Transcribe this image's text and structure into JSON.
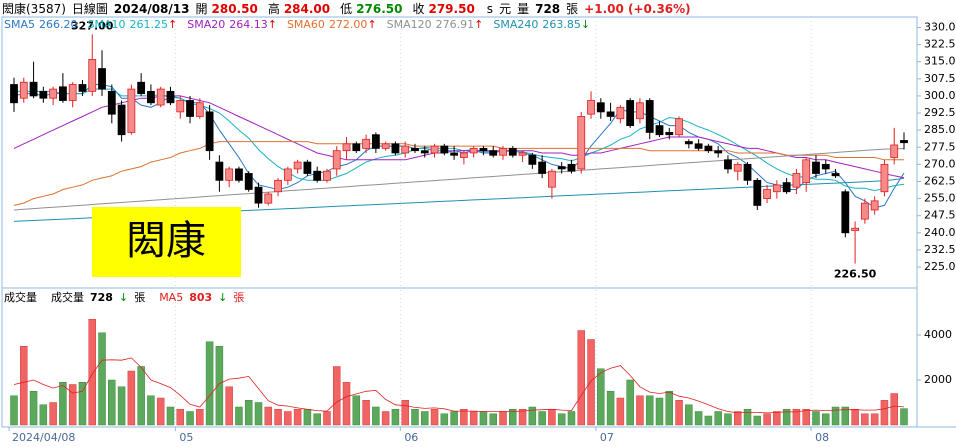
{
  "chart_data": {
    "type": "candlestick",
    "title": "閎康(3587)",
    "subtitle": "日線圖",
    "date": "2024/08/13",
    "quote": [
      {
        "name": "開",
        "value": 280.5,
        "label": "280.50",
        "color": "#e00000"
      },
      {
        "name": "高",
        "value": 284,
        "label": "284.00",
        "color": "#e00000"
      },
      {
        "name": "低",
        "value": 276.5,
        "label": "276.50",
        "color": "#008a00"
      },
      {
        "name": "收",
        "value": 279.5,
        "label": "279.50",
        "color": "#e00000"
      }
    ],
    "currency_s": "s",
    "currency": "元",
    "volume_name": "量",
    "unit": "張",
    "change": "+1.00 (+0.36%)",
    "watermark": "閎康",
    "max_label": "327.00",
    "min_label": "226.50",
    "up_color": "#e02020",
    "up_fill": "#f58a8a",
    "down_color": "#000000",
    "categories": [
      "2024/04/08",
      null,
      null,
      null,
      null,
      null,
      null,
      null,
      null,
      null,
      null,
      null,
      null,
      null,
      null,
      null,
      null,
      "05",
      null,
      null,
      null,
      null,
      null,
      null,
      null,
      null,
      null,
      null,
      null,
      null,
      null,
      null,
      null,
      null,
      null,
      null,
      null,
      null,
      null,
      null,
      "06",
      null,
      null,
      null,
      null,
      null,
      null,
      null,
      null,
      null,
      null,
      null,
      null,
      null,
      null,
      null,
      null,
      null,
      null,
      null,
      "07",
      null,
      null,
      null,
      null,
      null,
      null,
      null,
      null,
      null,
      null,
      null,
      null,
      null,
      null,
      null,
      null,
      null,
      null,
      null,
      null,
      null,
      "08",
      null,
      null,
      null,
      null,
      null,
      null,
      null,
      null,
      null
    ],
    "open": [
      305,
      299,
      306,
      302,
      299,
      304,
      298,
      305,
      302,
      312,
      302,
      296,
      284,
      306,
      302,
      296,
      302,
      293,
      298,
      291,
      293,
      271,
      263,
      268,
      266,
      260,
      253,
      258,
      263,
      268,
      271,
      267,
      263,
      268,
      276,
      279,
      277,
      283,
      277,
      279,
      275,
      277,
      276,
      275,
      278,
      275,
      273,
      275,
      277,
      276,
      274,
      277,
      274,
      274,
      271,
      260,
      269,
      270,
      268,
      292,
      297,
      293,
      290,
      298,
      290,
      298,
      287,
      284,
      283,
      280,
      279,
      278,
      276,
      272,
      267,
      270,
      263,
      255,
      258,
      262,
      260,
      262,
      271,
      270,
      266,
      258,
      241,
      246,
      250,
      258,
      273,
      280.5
    ],
    "high": [
      308,
      308,
      315,
      304,
      304,
      310,
      306,
      307,
      327,
      320,
      305,
      298,
      305,
      310,
      305,
      304,
      304,
      300,
      300,
      299,
      296,
      274,
      269,
      269,
      267,
      262,
      258,
      264,
      269,
      272,
      272,
      269,
      268,
      278,
      282,
      280,
      283,
      284,
      280,
      280,
      280,
      279,
      278,
      279,
      279,
      278,
      276,
      278,
      278,
      278,
      278,
      278,
      276,
      275,
      274,
      268,
      271,
      272,
      293,
      302,
      299,
      297,
      296,
      299,
      299,
      299,
      289,
      286,
      291,
      281,
      281,
      279,
      278,
      274,
      271,
      271,
      264,
      261,
      263,
      264,
      268,
      273,
      274,
      272,
      268,
      259,
      245,
      255,
      256,
      272,
      286,
      284
    ],
    "low": [
      293,
      297,
      299,
      297,
      296,
      297,
      295,
      300,
      300,
      300,
      288,
      280,
      283,
      300,
      296,
      295,
      296,
      290,
      288,
      290,
      272,
      258,
      260,
      262,
      258,
      251,
      252,
      256,
      261,
      266,
      265,
      262,
      262,
      265,
      272,
      275,
      275,
      275,
      276,
      274,
      273,
      275,
      273,
      273,
      274,
      272,
      270,
      273,
      274,
      273,
      272,
      273,
      271,
      268,
      264,
      255,
      266,
      266,
      266,
      290,
      290,
      289,
      288,
      286,
      288,
      281,
      282,
      281,
      282,
      277,
      276,
      275,
      273,
      266,
      263,
      261,
      250,
      253,
      255,
      257,
      257,
      258,
      264,
      266,
      264,
      238,
      226.5,
      244,
      248,
      256,
      270,
      276.5
    ],
    "close": [
      297,
      306,
      300,
      299,
      303,
      298,
      305,
      302,
      316,
      303,
      292,
      283,
      303,
      301,
      297,
      303,
      297,
      298,
      291,
      297,
      276,
      263,
      268,
      263,
      259,
      253,
      257,
      263,
      268,
      271,
      266,
      263,
      267,
      276,
      279,
      276,
      281,
      277,
      279,
      275,
      278,
      276,
      275,
      278,
      275,
      274,
      275,
      277,
      276,
      274,
      277,
      274,
      275,
      270,
      266,
      267,
      268,
      267,
      291,
      298,
      293,
      291,
      295,
      287,
      297,
      284,
      283,
      283,
      290,
      279,
      277,
      276,
      275,
      268,
      270,
      263,
      252,
      259,
      261,
      258,
      266,
      272,
      266,
      268,
      265,
      240,
      242,
      253,
      254,
      270,
      278.5,
      279.5
    ],
    "ylim": [
      215.8,
      334.6
    ],
    "yticks": [
      {
        "value": 330,
        "label": "330.0"
      },
      322.5,
      {
        "value": 315,
        "label": "315.0"
      },
      307.5,
      {
        "value": 300,
        "label": "300.0"
      },
      292.5,
      {
        "value": 285,
        "label": "285.0"
      },
      277.5,
      {
        "value": 270,
        "label": "270.0"
      },
      262.5,
      {
        "value": 255,
        "label": "255.0"
      },
      247.5,
      {
        "value": 240,
        "label": "240.0"
      },
      232.5,
      {
        "value": 225,
        "label": "225.0"
      }
    ],
    "series": [
      {
        "name": "SMA5",
        "color": "#2a78c8",
        "value_label": "266.20",
        "values": [
          300,
          301,
          301,
          300,
          301,
          301,
          301,
          301,
          305,
          305,
          304,
          299,
          299,
          296,
          295,
          297,
          300,
          299,
          297,
          297,
          292,
          285,
          279,
          273,
          266,
          261,
          260,
          259,
          260,
          262,
          265,
          266,
          267,
          269,
          270,
          272,
          276,
          278,
          278,
          278,
          278,
          277,
          277,
          276,
          276,
          276,
          275,
          276,
          275,
          275,
          276,
          276,
          275,
          274,
          272,
          270,
          269,
          268,
          272,
          278,
          283,
          288,
          294,
          293,
          293,
          291,
          289,
          287,
          287,
          284,
          282,
          281,
          279,
          275,
          273,
          270,
          266,
          262,
          261,
          259,
          259,
          263,
          265,
          266,
          267,
          262,
          256,
          254,
          251,
          252,
          259.5,
          266.2
        ]
      },
      {
        "name": "SMA10",
        "color": "#17b3c4",
        "value_label": "261.25",
        "arrow": "↑",
        "arrow_color": "#e00000",
        "values": [
          302,
          302,
          302,
          302,
          302,
          301,
          301,
          301,
          303,
          303,
          303,
          300,
          300,
          300,
          300,
          300.5,
          299.5,
          299,
          296.5,
          296,
          294.5,
          292.5,
          289,
          285,
          281.5,
          276.5,
          272.5,
          269,
          266.5,
          264,
          263,
          263,
          263,
          264.5,
          266,
          268.5,
          271,
          272.5,
          273.5,
          274,
          275,
          276.5,
          277.5,
          277,
          277,
          277,
          276,
          276.5,
          275.5,
          275.5,
          276,
          275.5,
          275.5,
          274.5,
          273.5,
          273,
          272.5,
          271.5,
          273,
          275,
          276.5,
          278.5,
          281,
          282.5,
          285.5,
          287,
          288.5,
          290.5,
          290,
          288.5,
          286.5,
          285,
          283,
          281,
          278.5,
          276,
          273.5,
          270.5,
          268,
          266,
          264.5,
          264.5,
          263.5,
          263.5,
          263,
          260.5,
          259.5,
          259.5,
          258.5,
          259.5,
          260.7,
          261.25
        ]
      },
      {
        "name": "SMA20",
        "color": "#a020c0",
        "value_label": "264.13",
        "arrow": "↑",
        "arrow_color": "#e00000",
        "values": [
          277,
          279,
          281,
          283,
          285,
          287,
          289,
          291,
          293,
          295,
          296,
          297,
          298,
          299,
          299,
          300,
          300,
          300,
          299,
          298,
          297,
          295,
          293,
          291,
          289,
          287,
          285,
          283,
          281,
          279,
          277,
          275,
          274,
          273,
          272,
          272,
          272,
          272,
          272,
          272,
          272,
          273,
          274,
          275,
          275,
          276,
          276,
          276,
          276,
          276,
          276,
          276,
          276,
          276,
          275,
          275,
          275,
          274,
          274,
          275,
          275,
          276,
          277,
          278,
          279,
          280,
          281,
          282,
          282,
          282,
          282,
          281,
          280,
          279,
          278,
          277,
          277,
          276,
          275,
          274,
          273,
          273,
          272,
          272,
          271,
          270,
          269,
          268,
          267,
          266,
          265,
          264.13
        ]
      },
      {
        "name": "SMA60",
        "color": "#e07030",
        "value_label": "272.00",
        "arrow": "↑",
        "arrow_color": "#e00000",
        "values": [
          252,
          253,
          255,
          256,
          257,
          259,
          260,
          261,
          263,
          264,
          265,
          267,
          268,
          269,
          271,
          272,
          273,
          275,
          276,
          277,
          279,
          280,
          280,
          280,
          280,
          280,
          280,
          280,
          280,
          280,
          280,
          279,
          279,
          279,
          279,
          279,
          279,
          279,
          279,
          279,
          279,
          278,
          278,
          278,
          278,
          278,
          278,
          278,
          278,
          278,
          277,
          277,
          277,
          277,
          277,
          277,
          277,
          277,
          277,
          277,
          277,
          277,
          277,
          277,
          277,
          276,
          276,
          276,
          276,
          276,
          276,
          276,
          276,
          276,
          275,
          275,
          275,
          275,
          275,
          274,
          274,
          274,
          274,
          274,
          273,
          273,
          273,
          273,
          273,
          272,
          272,
          272
        ]
      },
      {
        "name": "SMA120",
        "color": "#909090",
        "value_label": "276.91",
        "arrow": "↑",
        "arrow_color": "#e00000",
        "values": [
          250,
          250.3,
          250.6,
          250.9,
          251.2,
          251.5,
          251.8,
          252.1,
          252.4,
          252.7,
          253,
          253.3,
          253.6,
          253.9,
          254.2,
          254.5,
          254.8,
          255.1,
          255.4,
          255.7,
          256,
          256.3,
          256.6,
          256.9,
          257.2,
          257.5,
          257.8,
          258.1,
          258.4,
          258.7,
          259,
          259.3,
          259.6,
          259.9,
          260.2,
          260.5,
          260.8,
          261.1,
          261.4,
          261.7,
          262,
          262.3,
          262.6,
          262.9,
          263.2,
          263.5,
          263.8,
          264.1,
          264.4,
          264.7,
          265,
          265.3,
          265.6,
          265.9,
          266.2,
          266.5,
          266.8,
          267.1,
          267.4,
          267.7,
          268,
          268.3,
          268.6,
          268.9,
          269.2,
          269.5,
          269.8,
          270.1,
          270.4,
          270.7,
          271,
          271.3,
          271.6,
          271.9,
          272.2,
          272.5,
          272.8,
          273.1,
          273.4,
          273.7,
          274,
          274.3,
          274.6,
          274.9,
          275.2,
          275.5,
          275.8,
          276.1,
          276.4,
          276.7,
          276.8,
          276.91
        ]
      },
      {
        "name": "SMA240",
        "color": "#2090b0",
        "value_label": "263.85",
        "arrow": "↓",
        "arrow_color": "#008a00",
        "values": [
          245,
          245.2,
          245.4,
          245.6,
          245.8,
          246,
          246.2,
          246.4,
          246.6,
          246.8,
          247,
          247.2,
          247.4,
          247.6,
          247.8,
          248,
          248.2,
          248.4,
          248.6,
          248.8,
          249,
          249.2,
          249.4,
          249.6,
          249.8,
          250,
          250.2,
          250.4,
          250.6,
          250.8,
          251,
          251.2,
          251.4,
          251.6,
          251.8,
          252,
          252.2,
          252.4,
          252.6,
          252.8,
          253,
          253.2,
          253.4,
          253.6,
          253.8,
          254,
          254.2,
          254.4,
          254.6,
          254.8,
          255,
          255.2,
          255.4,
          255.6,
          255.8,
          256,
          256.2,
          256.4,
          256.6,
          256.8,
          257,
          257.2,
          257.4,
          257.6,
          257.8,
          258,
          258.2,
          258.4,
          258.6,
          258.8,
          259,
          259.2,
          259.4,
          259.6,
          259.8,
          260,
          260.2,
          260.4,
          260.6,
          260.8,
          261,
          261.2,
          261.4,
          261.6,
          261.8,
          262,
          262.2,
          262.4,
          262.6,
          262.8,
          263.3,
          263.85
        ]
      }
    ],
    "volume": {
      "title": "成交量",
      "name": "成交量",
      "arrow": "↓",
      "arrow_color": "#008a00",
      "up_color": "#f06464",
      "down_color": "#5ca85c",
      "values": [
        1300,
        3500,
        1500,
        900,
        1000,
        1900,
        1800,
        1900,
        4700,
        4100,
        2000,
        1700,
        2400,
        2600,
        1300,
        1200,
        800,
        700,
        600,
        700,
        3700,
        3500,
        1700,
        800,
        1100,
        1000,
        800,
        700,
        600,
        700,
        700,
        500,
        600,
        2600,
        1900,
        1300,
        1100,
        800,
        600,
        700,
        1100,
        700,
        600,
        700,
        500,
        600,
        700,
        600,
        600,
        500,
        600,
        700,
        700,
        800,
        600,
        700,
        500,
        600,
        4200,
        3800,
        2500,
        1500,
        1200,
        2000,
        1300,
        1300,
        1200,
        1500,
        1100,
        900,
        600,
        400,
        600,
        500,
        600,
        700,
        400,
        500,
        600,
        700,
        700,
        700,
        600,
        500,
        800,
        800,
        700,
        500,
        500,
        1100,
        1400,
        728
      ],
      "ma_name": "MA5",
      "ma_color": "#e02020",
      "ma_arrow": "↓",
      "ma_values": [
        1800,
        1900,
        2000,
        1800,
        1640,
        1760,
        1420,
        1500,
        2260,
        2880,
        2900,
        2880,
        2980,
        2560,
        2000,
        1840,
        1660,
        1320,
        920,
        800,
        1300,
        1840,
        2040,
        2080,
        2160,
        1620,
        1080,
        880,
        840,
        760,
        700,
        640,
        620,
        1020,
        1260,
        1380,
        1500,
        1540,
        1140,
        900,
        860,
        780,
        740,
        760,
        720,
        620,
        620,
        620,
        600,
        600,
        600,
        600,
        620,
        660,
        680,
        700,
        660,
        640,
        1320,
        1960,
        2320,
        2520,
        2640,
        2200,
        1700,
        1460,
        1400,
        1460,
        1280,
        1200,
        1060,
        900,
        720,
        600,
        540,
        560,
        560,
        540,
        560,
        580,
        580,
        640,
        660,
        640,
        660,
        680,
        680,
        660,
        660,
        720,
        840,
        803
      ],
      "ylim": [
        0,
        6000
      ],
      "yticks": [
        4000,
        2000
      ]
    }
  }
}
